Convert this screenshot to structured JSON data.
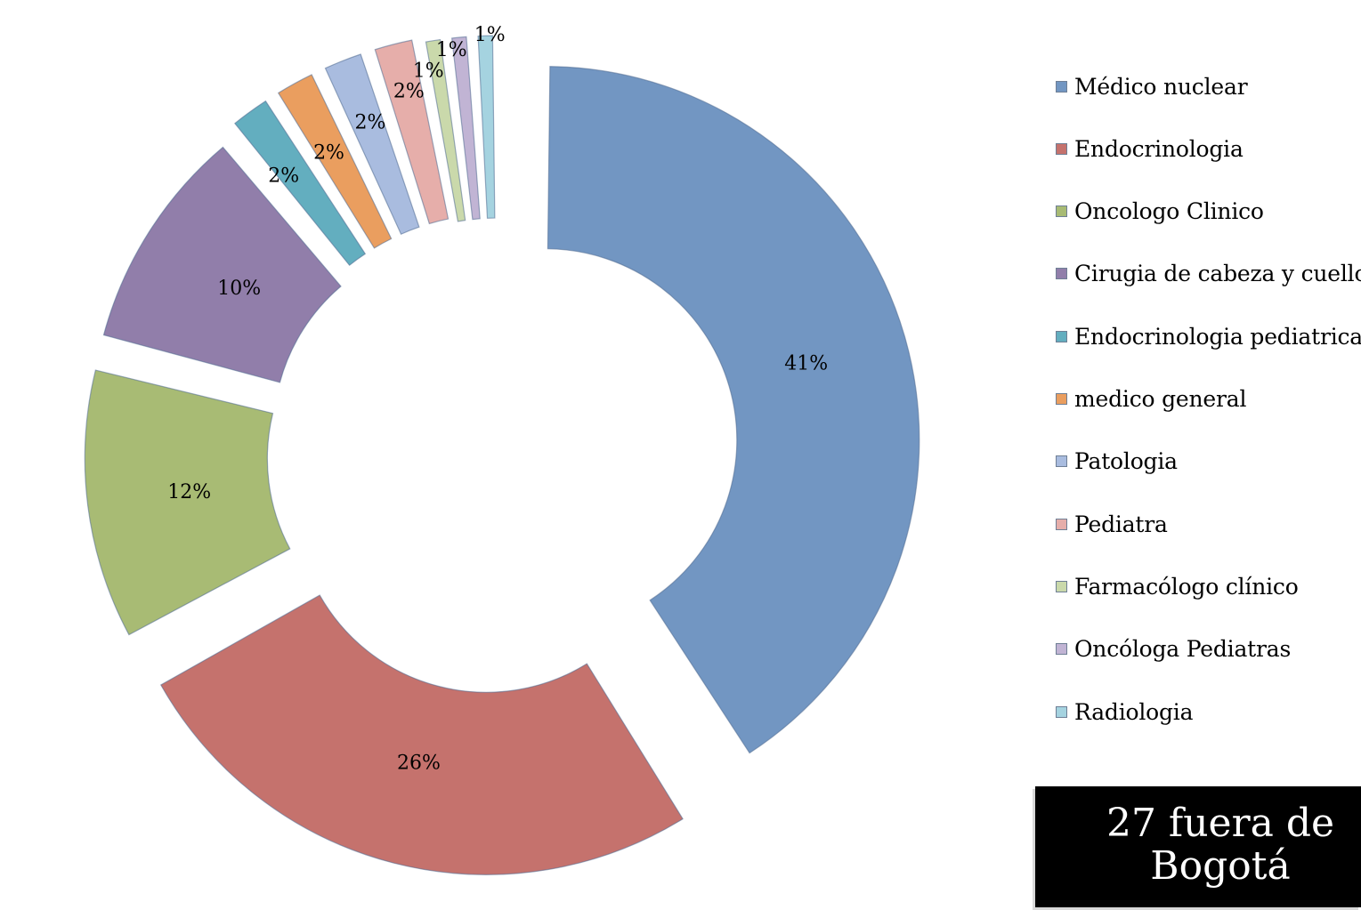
{
  "chart_data": {
    "type": "pie",
    "variant": "doughnut-exploded",
    "categories": [
      "Médico nuclear",
      "Endocrinologia",
      "Oncologo Clinico",
      "Cirugia de cabeza y cuello",
      "Endocrinologia pediatrica",
      "medico general",
      "Patologia",
      "Pediatra",
      "Farmacólogo clínico",
      "Oncóloga Pediatras",
      "Radiologia"
    ],
    "values": [
      41,
      26,
      12,
      10,
      2,
      2,
      2,
      2,
      1,
      1,
      1
    ],
    "labels": [
      "41%",
      "26%",
      "12%",
      "10%",
      "2%",
      "2%",
      "2%",
      "2%",
      "1%",
      "1%",
      "1%"
    ],
    "colors": [
      "#7296c2",
      "#c5726d",
      "#a8bb74",
      "#917eaa",
      "#63aebf",
      "#ea9e5f",
      "#a9bcdf",
      "#e6aeaa",
      "#cad9ab",
      "#c1b4d4",
      "#a5d3e0"
    ],
    "legend_position": "right",
    "title": ""
  },
  "callout": {
    "text": "27 fuera de Bogotá"
  }
}
